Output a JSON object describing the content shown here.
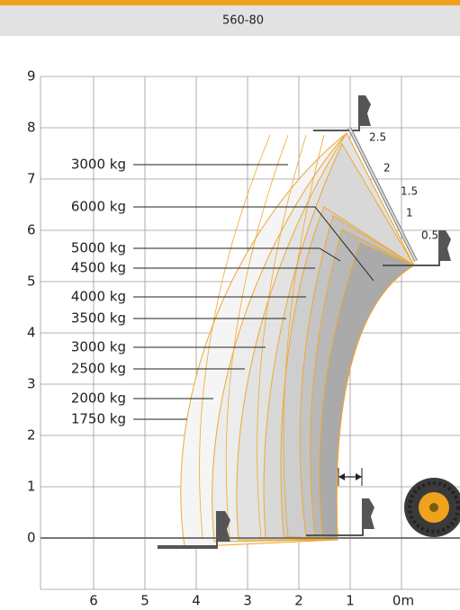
{
  "header": {
    "title": "560-80"
  },
  "y_axis": {
    "labels": [
      "9",
      "8",
      "7",
      "6",
      "5",
      "4",
      "3",
      "2",
      "1",
      "0"
    ]
  },
  "x_axis": {
    "labels": [
      "6",
      "5",
      "4",
      "3",
      "2",
      "1",
      "0m"
    ]
  },
  "load_labels": [
    "3000 kg",
    "6000 kg",
    "5000 kg",
    "4500 kg",
    "4000 kg",
    "3500 kg",
    "3000 kg",
    "2500 kg",
    "2000 kg",
    "1750 kg"
  ],
  "extension_labels": [
    "2.5",
    "2",
    "1.5",
    "1",
    "0.5"
  ]
}
